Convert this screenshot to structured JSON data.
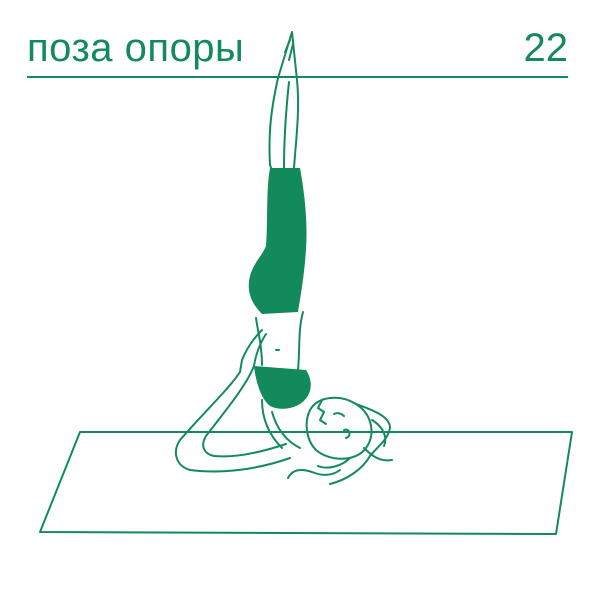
{
  "header": {
    "title": "поза опоры",
    "number": "22"
  },
  "illustration": {
    "icon": "yoga-shoulder-stand-illustration",
    "line_color": "#138a5b",
    "fill_color": "#138a5b",
    "background": "#ffffff"
  }
}
